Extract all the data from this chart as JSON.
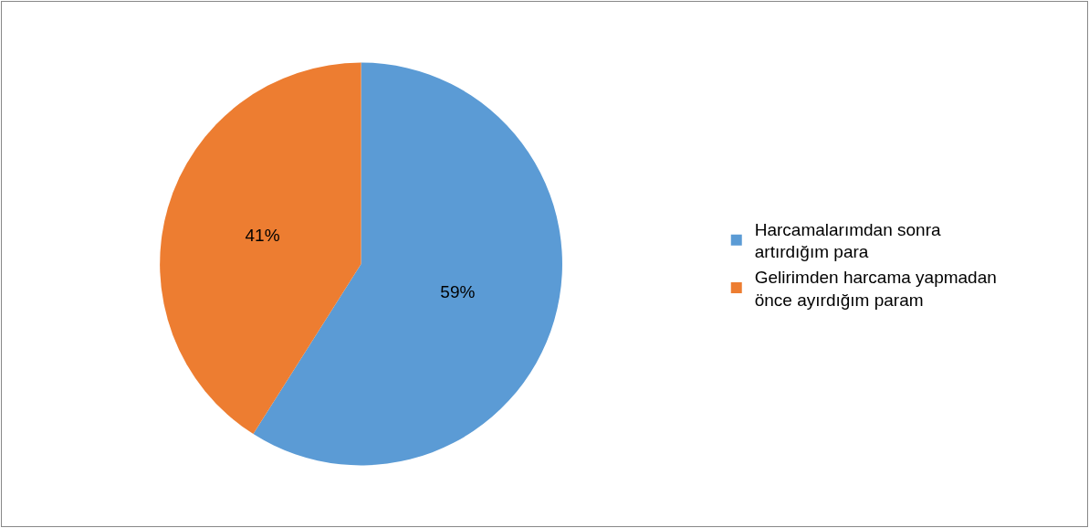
{
  "chart_data": {
    "type": "pie",
    "categories": [
      "Harcamalarımdan sonra artırdığım para",
      "Gelirimden harcama yapmadan önce ayırdığım param"
    ],
    "values": [
      59,
      41
    ],
    "colors": [
      "#5b9bd5",
      "#ed7d31"
    ],
    "value_labels": [
      "59%",
      "41%"
    ],
    "legend": "right"
  }
}
